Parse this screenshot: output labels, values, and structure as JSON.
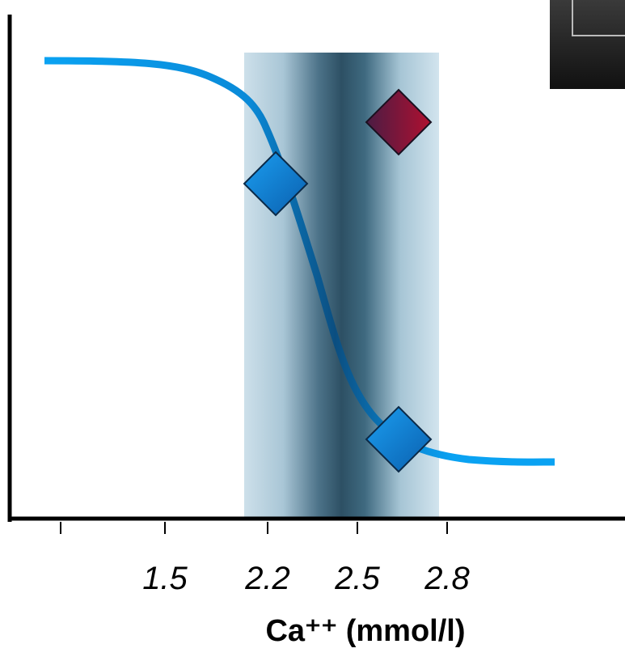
{
  "chart_data": {
    "type": "line",
    "xlabel": "Ca⁺⁺ (mmol/l)",
    "categories": [
      null,
      "1.5",
      "2.2",
      "2.5",
      "2.8"
    ]
  }
}
